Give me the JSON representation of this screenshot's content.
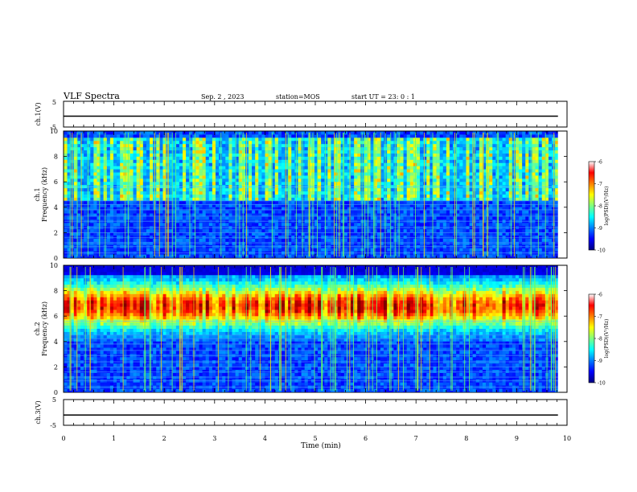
{
  "header": {
    "title": "VLF Spectra",
    "date": "Sep. 2 , 2023",
    "station": "station=MOS",
    "start_ut": "start UT = 23: 0 : 1"
  },
  "chart_data": {
    "type": "heatmap",
    "xlabel": "Time (min)",
    "xlim": [
      0,
      10
    ],
    "x_ticks": [
      "0",
      "1",
      "2",
      "3",
      "4",
      "5",
      "6",
      "7",
      "8",
      "9",
      "10"
    ],
    "panels": [
      {
        "name": "ch1-waveform",
        "type": "line",
        "ylabel": "ch.1(V)",
        "ylim": [
          -5,
          5
        ],
        "y_ticks": [
          "5",
          "-5"
        ],
        "level": -0.8
      },
      {
        "name": "ch1-spectrogram",
        "type": "heatmap",
        "ylabel": "ch.1 Frequency (kHz)",
        "ylim": [
          0,
          10
        ],
        "y_ticks": [
          "0",
          "2",
          "4",
          "6",
          "8",
          "10"
        ],
        "colorbar": {
          "label": "log(PSD)(V²/Hz)",
          "range": [
            -10,
            -6
          ],
          "ticks": [
            "-6",
            "-7",
            "-8",
            "-9",
            "-10"
          ]
        }
      },
      {
        "name": "ch2-spectrogram",
        "type": "heatmap",
        "ylabel": "ch.2 Frequency (kHz)",
        "ylim": [
          0,
          10
        ],
        "y_ticks": [
          "0",
          "2",
          "4",
          "6",
          "8",
          "10"
        ],
        "colorbar": {
          "label": "log(PSD)(V²/Hz)",
          "range": [
            -10,
            -6
          ],
          "ticks": [
            "-6",
            "-7",
            "-8",
            "-9",
            "-10"
          ]
        }
      },
      {
        "name": "ch3-waveform",
        "type": "line",
        "ylabel": "ch.3(V)",
        "ylim": [
          -5,
          5
        ],
        "y_ticks": [
          "5",
          "-5"
        ],
        "level": -1.0
      }
    ],
    "data_end_min": 9.82
  }
}
